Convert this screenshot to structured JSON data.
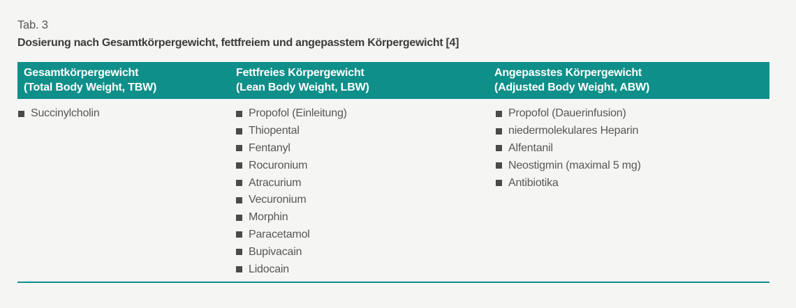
{
  "page": {
    "background": "#f5f5f4"
  },
  "colors": {
    "header_bg": "#0f8f89",
    "header_text": "#ffffff",
    "rule": "#0f8f89",
    "body_text": "#575756",
    "bullet": "#4a4a49",
    "title_text": "#3c3c3b",
    "caption_text": "#575756"
  },
  "table": {
    "caption": "Tab. 3",
    "title": "Dosierung nach Gesamtkörpergewicht, fettfreiem und angepasstem Körpergewicht [4]",
    "columns": [
      {
        "header_line1": "Gesamtkörpergewicht",
        "header_line2": "(Total Body Weight, TBW)",
        "items": [
          "Succinylcholin"
        ]
      },
      {
        "header_line1": "Fettfreies Körpergewicht",
        "header_line2": "(Lean Body Weight, LBW)",
        "items": [
          "Propofol (Einleitung)",
          "Thiopental",
          "Fentanyl",
          "Rocuronium",
          "Atracurium",
          "Vecuronium",
          "Morphin",
          "Paracetamol",
          "Bupivacain",
          "Lidocain"
        ]
      },
      {
        "header_line1": "Angepasstes Körpergewicht",
        "header_line2": "(Adjusted Body Weight, ABW)",
        "items": [
          "Propofol (Dauerinfusion)",
          "niedermolekulares Heparin",
          "Alfentanil",
          "Neostigmin (maximal 5 mg)",
          "Antibiotika"
        ]
      }
    ]
  }
}
